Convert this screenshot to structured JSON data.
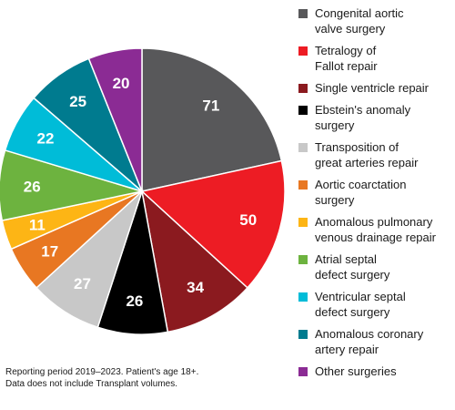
{
  "chart_data": {
    "type": "pie",
    "title": "",
    "categories": [
      "Congenital aortic valve surgery",
      "Tetralogy of Fallot repair",
      "Single ventricle repair",
      "Ebstein's anomaly surgery",
      "Transposition of great arteries repair",
      "Aortic coarctation surgery",
      "Anomalous pulmonary venous drainage repair",
      "Atrial septal defect surgery",
      "Ventricular septal defect surgery",
      "Anomalous coronary artery repair",
      "Other surgeries"
    ],
    "legend_lines": [
      [
        "Congenital aortic",
        "valve surgery"
      ],
      [
        "Tetralogy of",
        "Fallot repair"
      ],
      [
        "Single ventricle repair"
      ],
      [
        "Ebstein's anomaly",
        "surgery"
      ],
      [
        "Transposition of",
        "great arteries repair"
      ],
      [
        "Aortic coarctation",
        "surgery"
      ],
      [
        "Anomalous pulmonary",
        "venous drainage repair"
      ],
      [
        "Atrial septal",
        "defect surgery"
      ],
      [
        "Ventricular septal",
        "defect surgery"
      ],
      [
        "Anomalous coronary",
        "artery repair"
      ],
      [
        "Other surgeries"
      ]
    ],
    "values": [
      71,
      50,
      34,
      26,
      27,
      17,
      11,
      26,
      22,
      25,
      20
    ],
    "colors": [
      "#58585a",
      "#ed1c24",
      "#8b1a1f",
      "#000000",
      "#c8c8c8",
      "#e87722",
      "#fdb515",
      "#6db33f",
      "#00bcd8",
      "#007b8f",
      "#8b2b94"
    ],
    "legend_position": "right",
    "start_angle": "12 o'clock",
    "direction": "clockwise"
  },
  "footnote": {
    "line1": "Reporting period 2019–2023. Patient's age 18+.",
    "line2": "Data does not include Transplant volumes."
  }
}
